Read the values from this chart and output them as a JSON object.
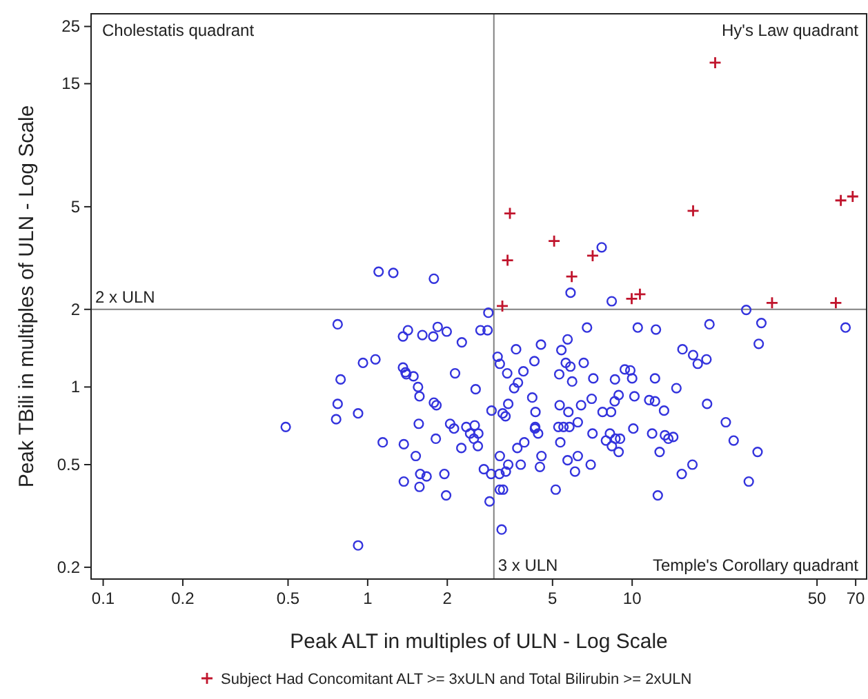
{
  "chart_data": {
    "type": "scatter",
    "xlabel": "Peak ALT in multiples of ULN - Log Scale",
    "ylabel": "Peak TBili in multiples of ULN - Log Scale",
    "log": "xy",
    "grid": false,
    "legend": "bottom",
    "xlim": [
      0.09,
      77
    ],
    "xticks": [
      0.1,
      0.2,
      0.5,
      1,
      2,
      5,
      10,
      50,
      70
    ],
    "ylim": [
      0.18,
      28
    ],
    "yticks": [
      0.2,
      0.5,
      1,
      2,
      5,
      15,
      25
    ],
    "ref_lines": [
      {
        "axis": "x",
        "value": 3,
        "label": "3 x ULN",
        "color": "#808080"
      },
      {
        "axis": "y",
        "value": 2,
        "label": "2 x ULN",
        "color": "#808080"
      }
    ],
    "annotations": [
      "Cholestatis quadrant",
      "Hy's Law quadrant",
      "Temple's Corollary quadrant"
    ],
    "series": [
      {
        "color": "#3333dd",
        "marker": "circle",
        "x": [
          1.1,
          1.25,
          1.78,
          7.67,
          5.85,
          8.37,
          27.0,
          2.86,
          0.77,
          0.49,
          0.92,
          0.79,
          0.77,
          0.76,
          0.92,
          0.96,
          1.07,
          1.36,
          1.42,
          1.61,
          1.77,
          1.84,
          1.99,
          2.27,
          2.67,
          2.84,
          1.36,
          1.39,
          1.4,
          1.49,
          2.14,
          1.55,
          1.57,
          1.78,
          1.82,
          2.56,
          2.94,
          1.56,
          1.14,
          1.37,
          1.81,
          2.05,
          2.12,
          2.36,
          2.54,
          2.44,
          2.62,
          2.52,
          2.61,
          2.26,
          1.52,
          1.37,
          1.58,
          1.67,
          1.57,
          1.95,
          1.98,
          2.75,
          2.93,
          2.89,
          3.21,
          3.16,
          3.25,
          3.15,
          3.33,
          3.4,
          3.16,
          3.79,
          3.68,
          3.91,
          4.48,
          4.54,
          4.29,
          4.41,
          4.3,
          3.32,
          3.24,
          3.4,
          3.58,
          3.7,
          3.37,
          3.88,
          3.16,
          3.1,
          3.64,
          4.27,
          4.52,
          4.19,
          4.31,
          6.75,
          10.5,
          12.3,
          19.6,
          30.8,
          30.1,
          64.1,
          5.7,
          5.4,
          5.61,
          5.84,
          6.56,
          5.3,
          5.93,
          7.13,
          8.61,
          9.38,
          9.84,
          10.0,
          12.2,
          15.5,
          17.0,
          17.7,
          19.1,
          14.7,
          19.2,
          8.89,
          8.59,
          10.2,
          11.6,
          12.2,
          13.2,
          5.32,
          5.74,
          6.41,
          7.03,
          7.73,
          8.32,
          5.26,
          5.5,
          5.79,
          6.23,
          5.35,
          7.08,
          8.24,
          7.96,
          8.38,
          8.65,
          9.0,
          8.89,
          10.1,
          11.9,
          13.3,
          13.7,
          14.3,
          12.7,
          22.6,
          24.2,
          29.8,
          16.9,
          15.4,
          27.6,
          12.5,
          5.14,
          5.7,
          6.08,
          6.23,
          6.97
        ],
        "values": [
          2.8,
          2.77,
          2.63,
          3.48,
          2.32,
          2.15,
          1.99,
          1.94,
          1.75,
          0.7,
          0.243,
          1.07,
          0.86,
          0.75,
          0.79,
          1.24,
          1.28,
          1.57,
          1.66,
          1.59,
          1.57,
          1.71,
          1.64,
          1.49,
          1.66,
          1.66,
          1.19,
          1.14,
          1.12,
          1.1,
          1.13,
          1.0,
          0.92,
          0.87,
          0.85,
          0.98,
          0.81,
          0.72,
          0.61,
          0.6,
          0.63,
          0.72,
          0.69,
          0.7,
          0.71,
          0.66,
          0.66,
          0.63,
          0.59,
          0.58,
          0.54,
          0.43,
          0.46,
          0.45,
          0.41,
          0.46,
          0.38,
          0.48,
          0.46,
          0.36,
          0.28,
          0.4,
          0.4,
          0.46,
          0.47,
          0.5,
          0.54,
          0.5,
          0.58,
          0.61,
          0.49,
          0.54,
          0.69,
          0.66,
          0.7,
          0.77,
          0.79,
          0.86,
          0.99,
          1.04,
          1.13,
          1.15,
          1.23,
          1.31,
          1.4,
          1.26,
          1.46,
          0.91,
          0.8,
          1.7,
          1.7,
          1.67,
          1.75,
          1.77,
          1.47,
          1.7,
          1.53,
          1.39,
          1.24,
          1.2,
          1.24,
          1.12,
          1.05,
          1.08,
          1.07,
          1.17,
          1.16,
          1.08,
          1.08,
          1.4,
          1.33,
          1.23,
          1.28,
          0.99,
          0.86,
          0.93,
          0.88,
          0.92,
          0.89,
          0.88,
          0.81,
          0.85,
          0.8,
          0.85,
          0.9,
          0.8,
          0.8,
          0.7,
          0.7,
          0.7,
          0.73,
          0.61,
          0.66,
          0.66,
          0.62,
          0.59,
          0.63,
          0.63,
          0.56,
          0.69,
          0.66,
          0.65,
          0.63,
          0.64,
          0.56,
          0.73,
          0.62,
          0.56,
          0.5,
          0.46,
          0.43,
          0.38,
          0.4,
          0.52,
          0.47,
          0.54,
          0.5
        ]
      },
      {
        "name": "Subject Had Concomitant ALT >= 3xULN and Total Bilirubin >= 2xULN",
        "color": "#c0142c",
        "marker": "cross",
        "x": [
          20.6,
          3.45,
          17.0,
          61.5,
          68.2,
          5.07,
          3.38,
          7.09,
          5.91,
          9.96,
          10.7,
          3.23,
          33.8,
          58.9
        ],
        "values": [
          18.1,
          4.71,
          4.82,
          5.29,
          5.48,
          3.68,
          3.1,
          3.23,
          2.68,
          2.2,
          2.29,
          2.06,
          2.12,
          2.12
        ]
      }
    ]
  }
}
